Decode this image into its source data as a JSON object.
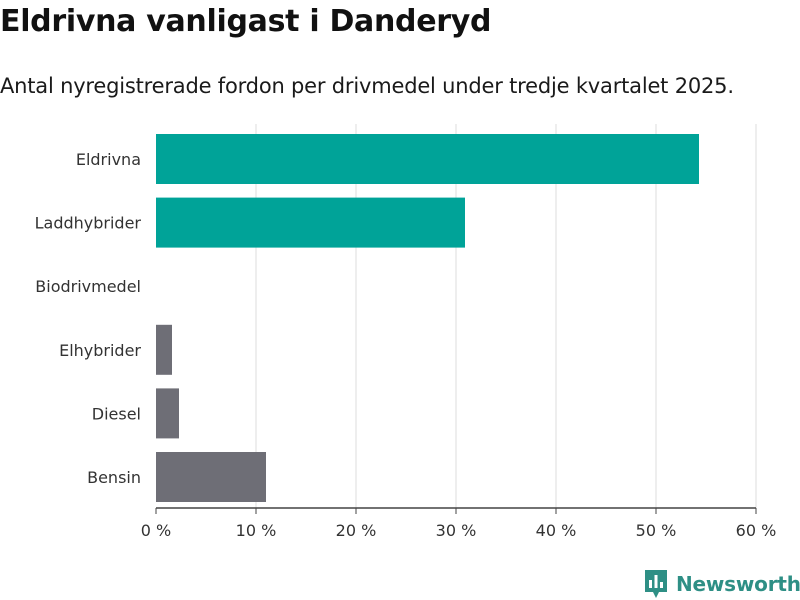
{
  "title": "Eldrivna vanligast i Danderyd",
  "subtitle": "Antal nyregistrerade fordon per drivmedel under tredje kvartalet 2025.",
  "brand": {
    "name": "Newsworthy",
    "color": "#2e8f85"
  },
  "colors": {
    "highlight": "#00a398",
    "other": "#6e6e76",
    "grid": "#dddddd",
    "axis": "#444444"
  },
  "chart_data": {
    "type": "bar",
    "orientation": "horizontal",
    "categories": [
      "Eldrivna",
      "Laddhybrider",
      "Biodrivmedel",
      "Elhybrider",
      "Diesel",
      "Bensin"
    ],
    "values": [
      54.3,
      30.9,
      0,
      1.6,
      2.3,
      11.0
    ],
    "highlight": [
      true,
      true,
      false,
      false,
      false,
      false
    ],
    "xlim": [
      0,
      60
    ],
    "xticks": [
      0,
      10,
      20,
      30,
      40,
      50,
      60
    ],
    "tick_labels": [
      "0 %",
      "10 %",
      "20 %",
      "30 %",
      "40 %",
      "50 %",
      "60 %"
    ],
    "grid": true
  }
}
